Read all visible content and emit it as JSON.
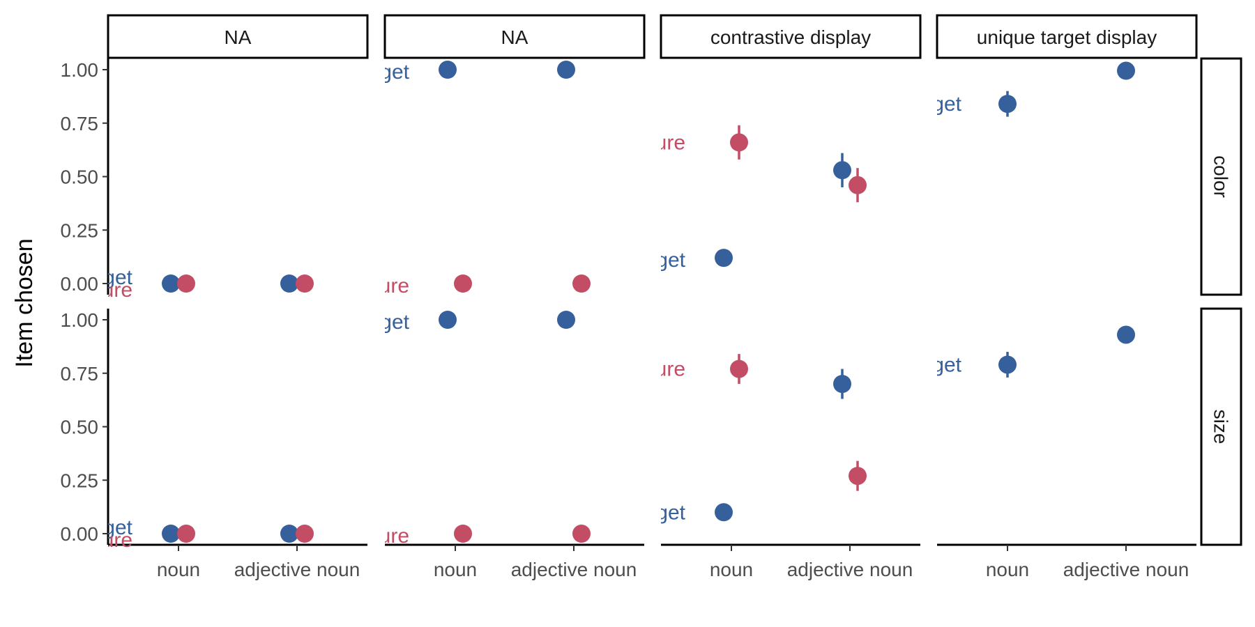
{
  "chart_data": {
    "type": "scatter",
    "ylabel": "Item chosen",
    "xlabel": "",
    "x_categories": [
      "noun",
      "adjective noun"
    ],
    "y_ticks": [
      "1.00",
      "0.75",
      "0.50",
      "0.25",
      "0.00"
    ],
    "ylim": [
      0,
      1
    ],
    "columns": [
      "NA",
      "NA",
      "contrastive display",
      "unique target display"
    ],
    "rows": [
      "color",
      "size"
    ],
    "colors": {
      "target": "#35609b",
      "competitor": "#c34d64"
    },
    "inline_labels": {
      "target": "get",
      "competitor": "ure"
    },
    "panels": [
      {
        "col": 0,
        "row": 0,
        "points": [
          {
            "series": "target",
            "x": "noun",
            "y": 0.0,
            "err": 0
          },
          {
            "series": "competitor",
            "x": "noun",
            "y": 0.0,
            "err": 0
          },
          {
            "series": "target",
            "x": "adjective noun",
            "y": 0.0,
            "err": 0
          },
          {
            "series": "competitor",
            "x": "adjective noun",
            "y": 0.0,
            "err": 0
          }
        ],
        "labels": [
          {
            "series": "target",
            "y": 0.03
          },
          {
            "series": "competitor",
            "y": -0.03
          }
        ]
      },
      {
        "col": 1,
        "row": 0,
        "points": [
          {
            "series": "target",
            "x": "noun",
            "y": 1.0,
            "err": 0
          },
          {
            "series": "competitor",
            "x": "noun",
            "y": 0.0,
            "err": 0
          },
          {
            "series": "target",
            "x": "adjective noun",
            "y": 1.0,
            "err": 0
          },
          {
            "series": "competitor",
            "x": "adjective noun",
            "y": 0.0,
            "err": 0
          }
        ],
        "labels": [
          {
            "series": "target",
            "y": 0.99
          },
          {
            "series": "competitor",
            "y": -0.01
          }
        ]
      },
      {
        "col": 2,
        "row": 0,
        "points": [
          {
            "series": "target",
            "x": "noun",
            "y": 0.12,
            "err": 0.04
          },
          {
            "series": "competitor",
            "x": "noun",
            "y": 0.66,
            "err": 0.08
          },
          {
            "series": "target",
            "x": "adjective noun",
            "y": 0.53,
            "err": 0.08
          },
          {
            "series": "competitor",
            "x": "adjective noun",
            "y": 0.46,
            "err": 0.08
          }
        ],
        "labels": [
          {
            "series": "target",
            "y": 0.11
          },
          {
            "series": "competitor",
            "y": 0.66
          }
        ]
      },
      {
        "col": 3,
        "row": 0,
        "points": [
          {
            "series": "target",
            "x": "noun",
            "y": 0.84,
            "err": 0.06
          },
          {
            "series": "target",
            "x": "adjective noun",
            "y": 0.995,
            "err": 0
          }
        ],
        "labels": [
          {
            "series": "target",
            "y": 0.84
          }
        ]
      },
      {
        "col": 0,
        "row": 1,
        "points": [
          {
            "series": "target",
            "x": "noun",
            "y": 0.0,
            "err": 0
          },
          {
            "series": "competitor",
            "x": "noun",
            "y": 0.0,
            "err": 0
          },
          {
            "series": "target",
            "x": "adjective noun",
            "y": 0.0,
            "err": 0
          },
          {
            "series": "competitor",
            "x": "adjective noun",
            "y": 0.0,
            "err": 0
          }
        ],
        "labels": [
          {
            "series": "target",
            "y": 0.03
          },
          {
            "series": "competitor",
            "y": -0.03
          }
        ]
      },
      {
        "col": 1,
        "row": 1,
        "points": [
          {
            "series": "target",
            "x": "noun",
            "y": 1.0,
            "err": 0
          },
          {
            "series": "competitor",
            "x": "noun",
            "y": 0.0,
            "err": 0
          },
          {
            "series": "target",
            "x": "adjective noun",
            "y": 1.0,
            "err": 0
          },
          {
            "series": "competitor",
            "x": "adjective noun",
            "y": 0.0,
            "err": 0
          }
        ],
        "labels": [
          {
            "series": "target",
            "y": 0.99
          },
          {
            "series": "competitor",
            "y": -0.01
          }
        ]
      },
      {
        "col": 2,
        "row": 1,
        "points": [
          {
            "series": "target",
            "x": "noun",
            "y": 0.1,
            "err": 0
          },
          {
            "series": "competitor",
            "x": "noun",
            "y": 0.77,
            "err": 0.07
          },
          {
            "series": "target",
            "x": "adjective noun",
            "y": 0.7,
            "err": 0.07
          },
          {
            "series": "competitor",
            "x": "adjective noun",
            "y": 0.27,
            "err": 0.07
          }
        ],
        "labels": [
          {
            "series": "target",
            "y": 0.1
          },
          {
            "series": "competitor",
            "y": 0.77
          }
        ]
      },
      {
        "col": 3,
        "row": 1,
        "points": [
          {
            "series": "target",
            "x": "noun",
            "y": 0.79,
            "err": 0.06
          },
          {
            "series": "target",
            "x": "adjective noun",
            "y": 0.93,
            "err": 0
          }
        ],
        "labels": [
          {
            "series": "target",
            "y": 0.79
          }
        ]
      }
    ]
  }
}
